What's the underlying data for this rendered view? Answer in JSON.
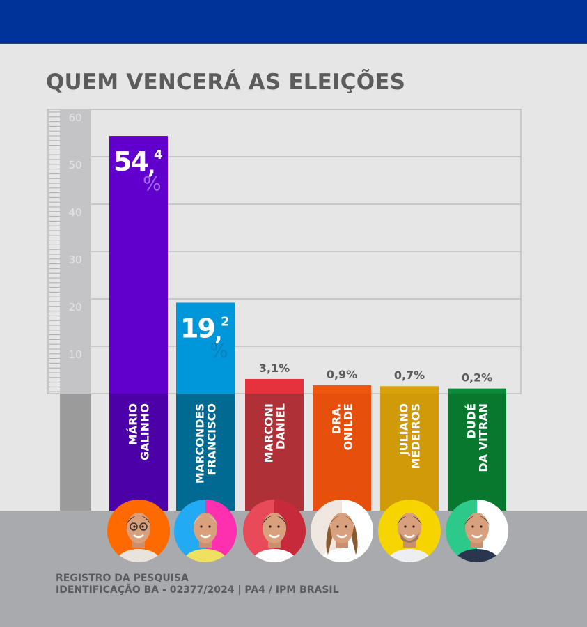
{
  "header": {
    "color": "#003399"
  },
  "title": "QUEM VENCERÁ AS ELEIÇÕES",
  "footer": {
    "line1": "REGISTRO DA PESQUISA",
    "line2": "IDENTIFICAÇÃO BA - 02377/2024 | PA4 / IPM BRASIL"
  },
  "chart_data": {
    "type": "bar",
    "title": "QUEM VENCERÁ AS ELEIÇÕES",
    "xlabel": "",
    "ylabel": "",
    "ylim": [
      0,
      60
    ],
    "yticks": [
      10,
      20,
      30,
      40,
      50,
      60
    ],
    "grid": true,
    "categories": [
      [
        "MÁRIO",
        "GALINHO"
      ],
      [
        "MARCONDES",
        "FRANCISCO"
      ],
      [
        "MARCONI",
        "DANIEL"
      ],
      [
        "DRA.",
        "ONILDE"
      ],
      [
        "JULIANO",
        "MEDEIROS"
      ],
      [
        "DUDÉ",
        "DA VITRAN"
      ]
    ],
    "values": [
      54.4,
      19.2,
      3.1,
      0.9,
      0.7,
      0.2
    ],
    "labels": [
      {
        "int": "54",
        "sep": ",",
        "dec": "4",
        "pct": "%"
      },
      {
        "int": "19",
        "sep": ",",
        "dec": "2",
        "pct": "%"
      },
      {
        "text": "3,1%"
      },
      {
        "text": "0,9%"
      },
      {
        "text": "0,7%"
      },
      {
        "text": "0,2%"
      }
    ],
    "colors": [
      "#6100cc",
      "#0096da",
      "#e5323c",
      "#ee5710",
      "#d8a20a",
      "#0b8a3a"
    ],
    "dark_colors": [
      "#4c00a8",
      "#006a92",
      "#b03038",
      "#e64f0c",
      "#d09a08",
      "#09782f"
    ],
    "photo_backgrounds": [
      "#ff6a00",
      "#22aaf5",
      "#e84a5a",
      "#f0e8e0",
      "#f5d400",
      "#2cc98a"
    ],
    "photo_alt_backgrounds": [
      "#ff6a00",
      "#ff30b0",
      "#c72a3a",
      "#ffffff",
      "#f5d400",
      "#ffffff"
    ]
  }
}
